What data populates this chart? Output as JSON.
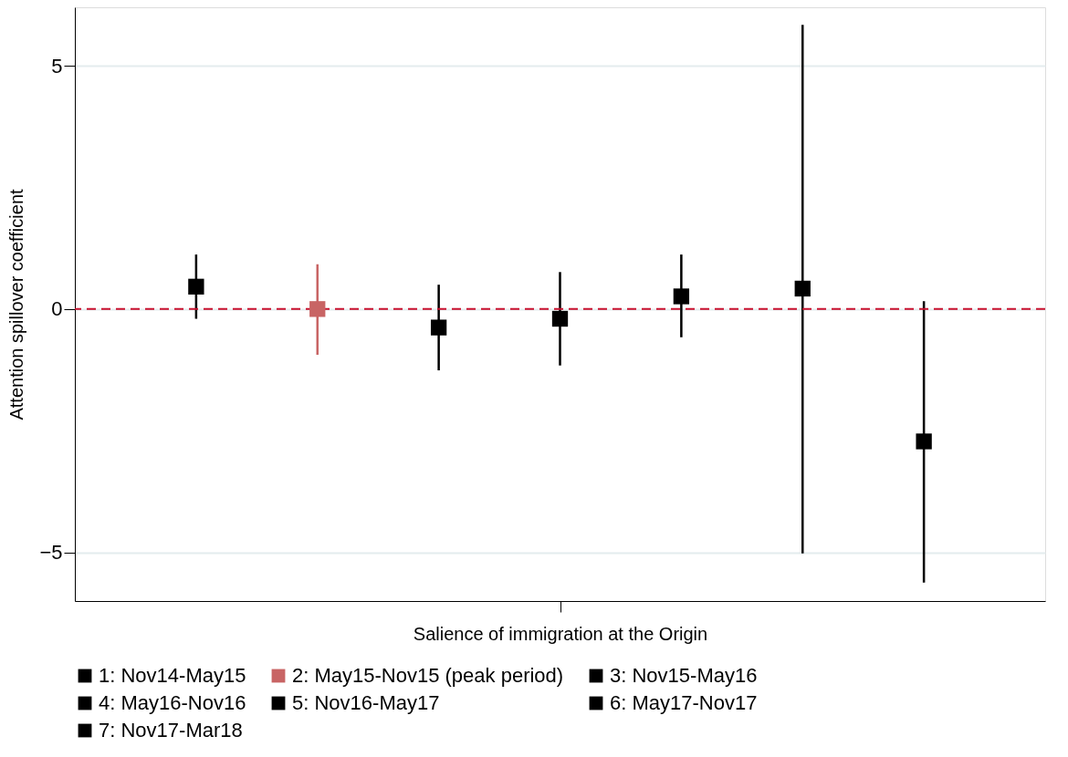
{
  "chart_data": {
    "type": "scatter",
    "xlabel": "Salience of immigration at the Origin",
    "ylabel": "Attention spillover coefficient",
    "categories": [
      null,
      null,
      null,
      null,
      null,
      null,
      null
    ],
    "ylim": [
      -6.0,
      6.2
    ],
    "yticks": [
      -5,
      0,
      5
    ],
    "tick_labels": "y",
    "grid": "y",
    "legend": "bottom",
    "marker": "square",
    "series": [
      {
        "name": "1: Nov14-May15",
        "color": "#000000",
        "values": [
          0.46,
          null,
          null,
          null,
          null,
          null,
          null
        ],
        "errors": [
          [
            -0.2,
            1.12
          ],
          null,
          null,
          null,
          null,
          null,
          null
        ]
      },
      {
        "name": "2: May15-Nov15 (peak period)",
        "color": "#c86464",
        "values": [
          null,
          0.0,
          null,
          null,
          null,
          null,
          null
        ],
        "errors": [
          null,
          [
            -0.94,
            0.92
          ],
          null,
          null,
          null,
          null,
          null
        ]
      },
      {
        "name": "3: Nov15-May16",
        "color": "#000000",
        "values": [
          null,
          null,
          -0.38,
          null,
          null,
          null,
          null
        ],
        "errors": [
          null,
          null,
          [
            -1.26,
            0.5
          ],
          null,
          null,
          null,
          null
        ]
      },
      {
        "name": "4: May16-Nov16",
        "color": "#000000",
        "values": [
          null,
          null,
          null,
          -0.2,
          null,
          null,
          null
        ],
        "errors": [
          null,
          null,
          null,
          [
            -1.16,
            0.76
          ],
          null,
          null,
          null
        ]
      },
      {
        "name": "5: Nov16-May17",
        "color": "#000000",
        "values": [
          null,
          null,
          null,
          null,
          0.26,
          null,
          null
        ],
        "errors": [
          null,
          null,
          null,
          null,
          [
            -0.58,
            1.12
          ],
          null,
          null
        ]
      },
      {
        "name": "6: May17-Nov17",
        "color": "#000000",
        "values": [
          null,
          null,
          null,
          null,
          null,
          0.42,
          null
        ],
        "errors": [
          null,
          null,
          null,
          null,
          null,
          [
            -5.02,
            5.84
          ],
          null
        ]
      },
      {
        "name": "7: Nov17-Mar18",
        "color": "#000000",
        "values": [
          null,
          null,
          null,
          null,
          null,
          null,
          -2.72
        ],
        "errors": [
          null,
          null,
          null,
          null,
          null,
          null,
          [
            -5.62,
            0.16
          ]
        ]
      }
    ],
    "ref_lines": [
      {
        "axis": "y",
        "value": 0,
        "color": "#c8102e",
        "line_style": "dashed"
      }
    ]
  }
}
